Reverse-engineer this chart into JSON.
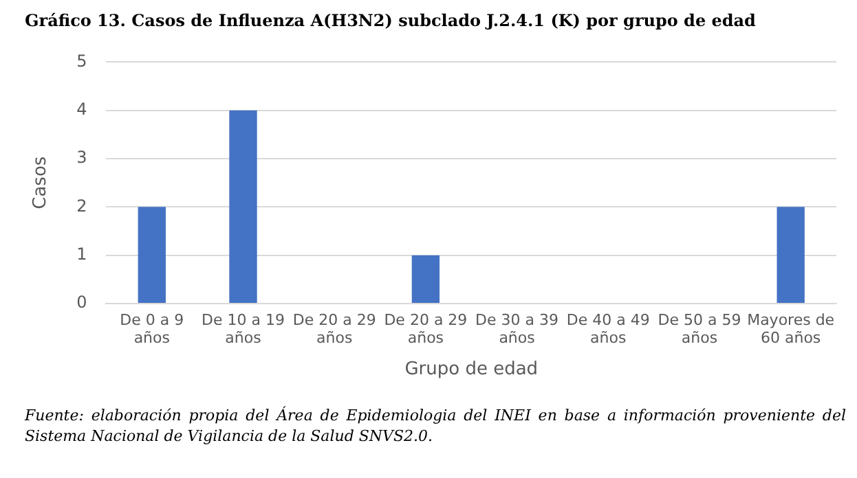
{
  "chart_data": {
    "type": "bar",
    "title": "Gráfico 13. Casos de Influenza A(H3N2) subclado J.2.4.1 (K) por grupo de edad",
    "categories": [
      "De 0 a 9 años",
      "De 10 a 19 años",
      "De 20 a 29 años",
      "De 20 a 29 años",
      "De 30 a 39 años",
      "De 40 a 49 años",
      "De 50 a 59 años",
      "Mayores de 60 años"
    ],
    "values": [
      2,
      4,
      0,
      1,
      0,
      0,
      0,
      2
    ],
    "color": "#4472c4",
    "xlabel": "Grupo de edad",
    "ylabel": "Casos",
    "ylim": [
      0,
      5
    ],
    "yticks": [
      0,
      1,
      2,
      3,
      4,
      5
    ],
    "grid": "y",
    "legend": false,
    "annotations": [
      "Fuente: elaboración propia del Área de Epidemiologia del INEI en base a información proveniente del Sistema Nacional de Vigilancia de la Salud SNVS2.0."
    ]
  }
}
